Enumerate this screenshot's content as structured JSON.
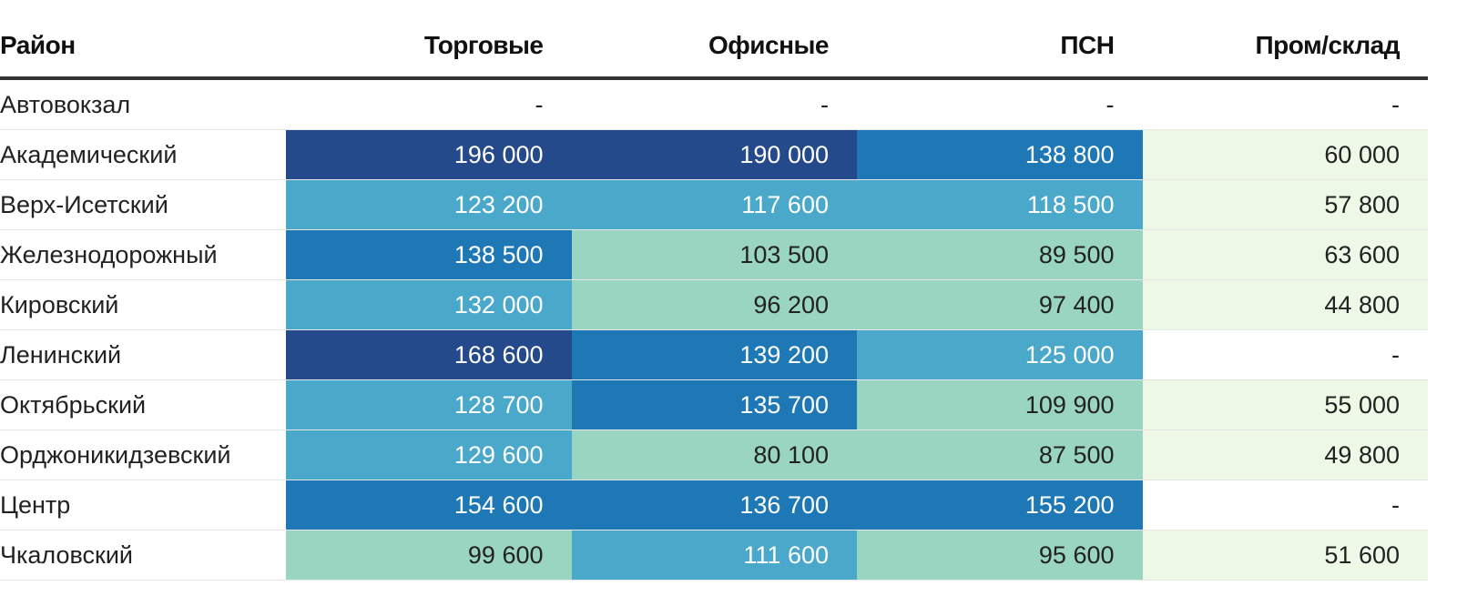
{
  "chart_data": {
    "type": "table",
    "columns": [
      "Район",
      "Торговые",
      "Офисные",
      "ПСН",
      "Пром/склад"
    ],
    "rows": [
      {
        "district": "Автовокзал",
        "values": [
          null,
          null,
          null,
          null
        ]
      },
      {
        "district": "Академический",
        "values": [
          196000,
          190000,
          138800,
          60000
        ]
      },
      {
        "district": "Верх-Исетский",
        "values": [
          123200,
          117600,
          118500,
          57800
        ]
      },
      {
        "district": "Железнодорожный",
        "values": [
          138500,
          103500,
          89500,
          63600
        ]
      },
      {
        "district": "Кировский",
        "values": [
          132000,
          96200,
          97400,
          44800
        ]
      },
      {
        "district": "Ленинский",
        "values": [
          168600,
          139200,
          125000,
          null
        ]
      },
      {
        "district": "Октябрьский",
        "values": [
          128700,
          135700,
          109900,
          55000
        ]
      },
      {
        "district": "Орджоникидзевский",
        "values": [
          129600,
          80100,
          87500,
          49800
        ]
      },
      {
        "district": "Центр",
        "values": [
          154600,
          136700,
          155200,
          null
        ]
      },
      {
        "district": "Чкаловский",
        "values": [
          99600,
          111600,
          95600,
          51600
        ]
      }
    ],
    "empty_label": "-",
    "color_scale": [
      {
        "min": 0,
        "max": 70000,
        "color": "#edf8e6",
        "text": "#222222"
      },
      {
        "min": 70000,
        "max": 110000,
        "color": "#99d5c0",
        "text": "#222222"
      },
      {
        "min": 110000,
        "max": 135000,
        "color": "#4aa9cb",
        "text": "#ffffff"
      },
      {
        "min": 135000,
        "max": 160000,
        "color": "#1e78b6",
        "text": "#ffffff"
      },
      {
        "min": 160000,
        "max": 1000000,
        "color": "#254a8b",
        "text": "#ffffff"
      }
    ]
  }
}
